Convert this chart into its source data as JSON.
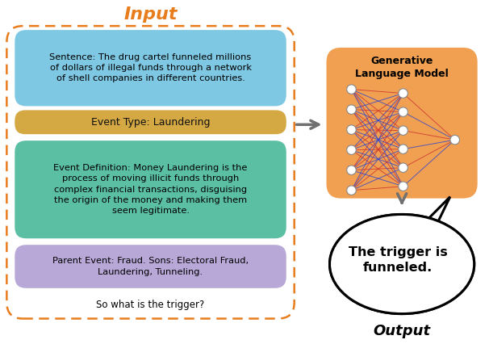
{
  "title_input": "Input",
  "title_input_color": "#E87D1E",
  "title_output": "Output",
  "title_output_color": "#222222",
  "sentence_text": "Sentence: The drug cartel funneled millions\nof dollars of illegal funds through a network\nof shell companies in different countries.",
  "sentence_box_color": "#7EC8E3",
  "event_type_text": "Event Type: Laundering",
  "event_type_box_color": "#D4A843",
  "event_def_text": "Event Definition: Money Laundering is the\nprocess of moving illicit funds through\ncomplex financial transactions, disguising\nthe origin of the money and making them\nseem legitimate.",
  "event_def_box_color": "#5BBFA3",
  "parent_event_text": "Parent Event: Fraud. Sons: Electoral Fraud,\nLaundering, Tunneling.",
  "parent_event_box_color": "#B8A8D8",
  "query_text": "So what is the trigger?",
  "glm_label": "Generative\nLanguage Model",
  "output_text": "The trigger is\nfunneled.",
  "outer_box_color": "#E87D1E",
  "glm_box_color": "#F0A050",
  "arrow_color": "#707070",
  "nn_line_colors_red": "#CC3333",
  "nn_line_colors_blue": "#3344CC",
  "node_color": "white",
  "node_edge_color": "#888888",
  "background_color": "white",
  "fig_w": 6.06,
  "fig_h": 4.26
}
